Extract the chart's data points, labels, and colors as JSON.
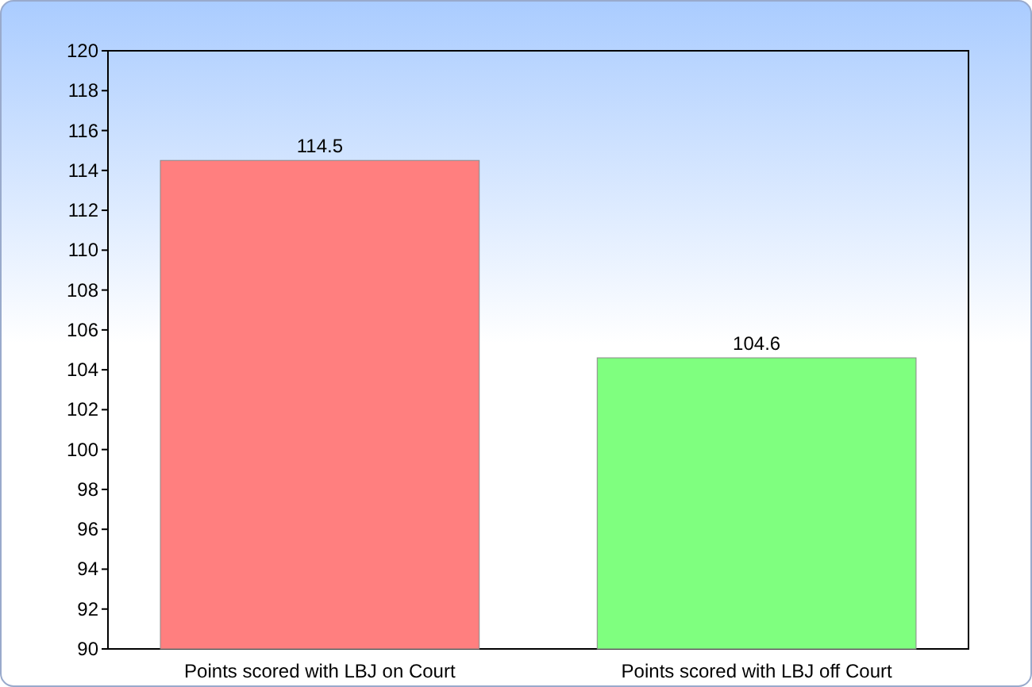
{
  "chart_data": {
    "type": "bar",
    "categories": [
      "Points scored with LBJ on Court",
      "Points scored with LBJ off Court"
    ],
    "values": [
      114.5,
      104.6
    ],
    "colors": [
      "#ff7f7f",
      "#7fff7f"
    ],
    "ylim": [
      90,
      120
    ],
    "yticks": [
      90,
      92,
      94,
      96,
      98,
      100,
      102,
      104,
      106,
      108,
      110,
      112,
      114,
      116,
      118,
      120
    ],
    "data_labels": true,
    "grid": false
  }
}
